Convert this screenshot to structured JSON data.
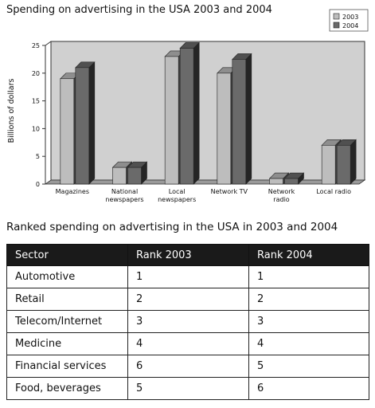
{
  "chart_data": {
    "type": "bar",
    "title": "Spending on advertising in the USA 2003 and 2004",
    "ylabel": "Billions of dollars",
    "xlabel": "",
    "ylim": [
      0,
      25
    ],
    "yticks": [
      0,
      5,
      10,
      15,
      20,
      25
    ],
    "grid": false,
    "legend_position": "top-right",
    "categories": [
      [
        "Magazines"
      ],
      [
        "National",
        "newspapers"
      ],
      [
        "Local",
        "newspapers"
      ],
      [
        "Network TV"
      ],
      [
        "Network",
        "radio"
      ],
      [
        "Local radio"
      ]
    ],
    "series": [
      {
        "name": "2003",
        "color": "#bdbdbd",
        "values": [
          19,
          3,
          23,
          20,
          1,
          7
        ]
      },
      {
        "name": "2004",
        "color": "#6a6a6a",
        "values": [
          21,
          3,
          24.5,
          22.5,
          1,
          7
        ]
      }
    ]
  },
  "table": {
    "title": "Ranked spending on advertising in the USA in 2003 and 2004",
    "headers": [
      "Sector",
      "Rank 2003",
      "Rank 2004"
    ],
    "rows": [
      [
        "Automotive",
        "1",
        "1"
      ],
      [
        "Retail",
        "2",
        "2"
      ],
      [
        "Telecom/Internet",
        "3",
        "3"
      ],
      [
        "Medicine",
        "4",
        "4"
      ],
      [
        "Financial services",
        "6",
        "5"
      ],
      [
        "Food, beverages",
        "5",
        "6"
      ]
    ]
  }
}
